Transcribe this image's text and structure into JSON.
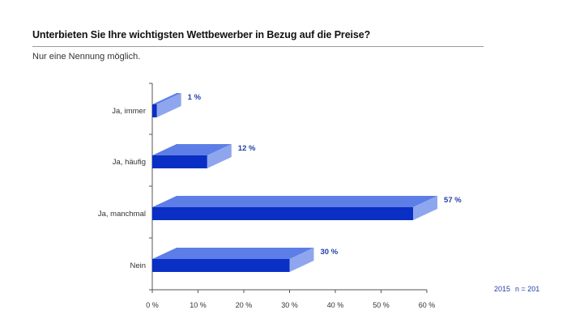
{
  "title": "Unterbieten Sie Ihre wichtigsten Wettbewerber in Bezug auf die Preise?",
  "subtitle": "Nur eine Nennung möglich.",
  "meta": {
    "year": "2015",
    "sample": "n = 201"
  },
  "colors": {
    "front": "#0a2fc4",
    "top": "#5d7ee6",
    "side": "#8ea6ee",
    "value_label": "#1e3fa8",
    "axis": "#555555"
  },
  "chart_data": {
    "type": "bar",
    "orientation": "horizontal",
    "categories": [
      "Ja, immer",
      "Ja, häufig",
      "Ja, manchmal",
      "Nein"
    ],
    "values": [
      1,
      12,
      57,
      30
    ],
    "value_labels": [
      "1 %",
      "12 %",
      "57 %",
      "30 %"
    ],
    "xlim": [
      0,
      60
    ],
    "xticks": [
      0,
      10,
      20,
      30,
      40,
      50,
      60
    ],
    "xtick_labels": [
      "0 %",
      "10 %",
      "20 %",
      "30 %",
      "40 %",
      "50 %",
      "60 %"
    ],
    "grid": false,
    "legend": "none",
    "style": "3d"
  }
}
